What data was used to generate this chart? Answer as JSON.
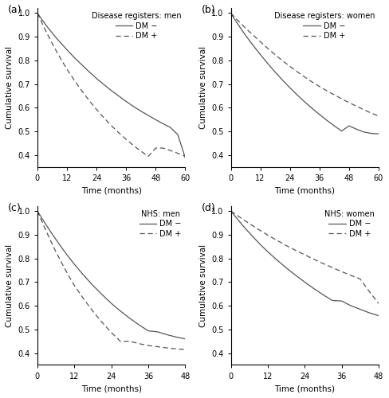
{
  "panels": [
    {
      "label": "(a)",
      "title": "Disease registers: men",
      "xmax": 60,
      "xticks": [
        0,
        12,
        24,
        36,
        48,
        60
      ],
      "ylim": [
        0.35,
        1.02
      ],
      "yticks": [
        0.4,
        0.5,
        0.6,
        0.7,
        0.8,
        0.9,
        1.0
      ],
      "dm_minus": {
        "x": [
          0,
          2,
          4,
          6,
          8,
          10,
          12,
          15,
          18,
          21,
          24,
          27,
          30,
          33,
          36,
          39,
          42,
          45,
          48,
          51,
          54,
          57,
          60
        ],
        "y": [
          1.0,
          0.97,
          0.942,
          0.916,
          0.891,
          0.868,
          0.845,
          0.812,
          0.782,
          0.752,
          0.724,
          0.698,
          0.673,
          0.65,
          0.627,
          0.606,
          0.586,
          0.568,
          0.55,
          0.533,
          0.517,
          0.487,
          0.39
        ]
      },
      "dm_plus": {
        "x": [
          0,
          2,
          4,
          6,
          8,
          10,
          12,
          15,
          18,
          21,
          24,
          27,
          30,
          33,
          36,
          39,
          42,
          45,
          48,
          51,
          54,
          57,
          60
        ],
        "y": [
          1.0,
          0.955,
          0.912,
          0.872,
          0.834,
          0.798,
          0.763,
          0.716,
          0.672,
          0.631,
          0.593,
          0.558,
          0.525,
          0.495,
          0.467,
          0.441,
          0.417,
          0.395,
          0.43,
          0.43,
          0.42,
          0.408,
          0.395
        ]
      }
    },
    {
      "label": "(b)",
      "title": "Disease registers: women",
      "xmax": 60,
      "xticks": [
        0,
        12,
        24,
        36,
        48,
        60
      ],
      "ylim": [
        0.35,
        1.02
      ],
      "yticks": [
        0.4,
        0.5,
        0.6,
        0.7,
        0.8,
        0.9,
        1.0
      ],
      "dm_minus": {
        "x": [
          0,
          2,
          4,
          6,
          8,
          10,
          12,
          15,
          18,
          21,
          24,
          27,
          30,
          33,
          36,
          39,
          42,
          45,
          48,
          51,
          54,
          57,
          60
        ],
        "y": [
          1.0,
          0.967,
          0.936,
          0.906,
          0.878,
          0.851,
          0.825,
          0.787,
          0.751,
          0.717,
          0.685,
          0.654,
          0.625,
          0.598,
          0.572,
          0.547,
          0.524,
          0.502,
          0.524,
          0.51,
          0.498,
          0.492,
          0.49
        ]
      },
      "dm_plus": {
        "x": [
          0,
          2,
          4,
          6,
          8,
          10,
          12,
          15,
          18,
          21,
          24,
          27,
          30,
          33,
          36,
          39,
          42,
          45,
          48,
          51,
          54,
          57,
          60
        ],
        "y": [
          1.0,
          0.978,
          0.957,
          0.936,
          0.917,
          0.898,
          0.879,
          0.851,
          0.824,
          0.799,
          0.775,
          0.752,
          0.73,
          0.709,
          0.69,
          0.672,
          0.655,
          0.638,
          0.622,
          0.607,
          0.592,
          0.578,
          0.565
        ]
      }
    },
    {
      "label": "(c)",
      "title": "NHS: men",
      "xmax": 48,
      "xticks": [
        0,
        12,
        24,
        36,
        48
      ],
      "ylim": [
        0.35,
        1.02
      ],
      "yticks": [
        0.4,
        0.5,
        0.6,
        0.7,
        0.8,
        0.9,
        1.0
      ],
      "dm_minus": {
        "x": [
          0,
          2,
          4,
          6,
          8,
          10,
          12,
          15,
          18,
          21,
          24,
          27,
          30,
          33,
          36,
          39,
          42,
          45,
          48
        ],
        "y": [
          1.0,
          0.958,
          0.918,
          0.88,
          0.843,
          0.808,
          0.775,
          0.729,
          0.686,
          0.647,
          0.61,
          0.577,
          0.547,
          0.519,
          0.494,
          0.49,
          0.478,
          0.468,
          0.46
        ]
      },
      "dm_plus": {
        "x": [
          0,
          2,
          4,
          6,
          8,
          10,
          12,
          15,
          18,
          21,
          24,
          27,
          30,
          33,
          36,
          39,
          42,
          45,
          48
        ],
        "y": [
          1.0,
          0.94,
          0.882,
          0.828,
          0.778,
          0.73,
          0.686,
          0.629,
          0.577,
          0.53,
          0.487,
          0.449,
          0.45,
          0.44,
          0.432,
          0.427,
          0.422,
          0.418,
          0.415
        ]
      }
    },
    {
      "label": "(d)",
      "title": "NHS: women",
      "xmax": 48,
      "xticks": [
        0,
        12,
        24,
        36,
        48
      ],
      "ylim": [
        0.35,
        1.02
      ],
      "yticks": [
        0.4,
        0.5,
        0.6,
        0.7,
        0.8,
        0.9,
        1.0
      ],
      "dm_minus": {
        "x": [
          0,
          2,
          4,
          6,
          8,
          10,
          12,
          15,
          18,
          21,
          24,
          27,
          30,
          33,
          36,
          39,
          42,
          45,
          48
        ],
        "y": [
          1.0,
          0.968,
          0.937,
          0.908,
          0.88,
          0.853,
          0.828,
          0.793,
          0.76,
          0.729,
          0.7,
          0.672,
          0.646,
          0.622,
          0.62,
          0.6,
          0.585,
          0.57,
          0.558
        ]
      },
      "dm_plus": {
        "x": [
          0,
          2,
          4,
          6,
          8,
          10,
          12,
          15,
          18,
          21,
          24,
          27,
          30,
          33,
          36,
          39,
          42,
          45,
          48
        ],
        "y": [
          1.0,
          0.982,
          0.964,
          0.947,
          0.93,
          0.914,
          0.898,
          0.876,
          0.854,
          0.834,
          0.815,
          0.796,
          0.778,
          0.761,
          0.744,
          0.728,
          0.713,
          0.66,
          0.61
        ]
      }
    }
  ],
  "line_color": "#555555",
  "tick_fontsize": 7,
  "axis_label_fontsize": 7.5,
  "legend_fontsize": 7,
  "legend_title_fontsize": 7,
  "panel_label_fontsize": 9
}
